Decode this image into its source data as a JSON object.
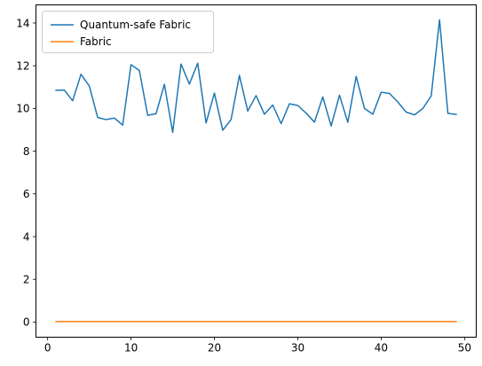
{
  "chart_data": {
    "type": "line",
    "title": "",
    "xlabel": "",
    "ylabel": "",
    "xlim": [
      -1.4,
      51.4
    ],
    "ylim": [
      -0.71,
      14.85
    ],
    "xticks": [
      0,
      10,
      20,
      30,
      40,
      50
    ],
    "yticks": [
      0,
      2,
      4,
      6,
      8,
      10,
      12,
      14
    ],
    "grid": false,
    "legend_position": "top-left",
    "x": [
      1,
      2,
      3,
      4,
      5,
      6,
      7,
      8,
      9,
      10,
      11,
      12,
      13,
      14,
      15,
      16,
      17,
      18,
      19,
      20,
      21,
      22,
      23,
      24,
      25,
      26,
      27,
      28,
      29,
      30,
      31,
      32,
      33,
      34,
      35,
      36,
      37,
      38,
      39,
      40,
      41,
      42,
      43,
      44,
      45,
      46,
      47,
      48,
      49
    ],
    "series": [
      {
        "name": "Quantum-safe Fabric",
        "color": "#1f77b4",
        "values": [
          10.85,
          10.86,
          10.36,
          11.6,
          11.05,
          9.58,
          9.48,
          9.55,
          9.22,
          12.05,
          11.78,
          9.68,
          9.75,
          11.13,
          8.88,
          12.08,
          11.14,
          12.12,
          9.32,
          10.72,
          8.98,
          9.48,
          11.55,
          9.88,
          10.6,
          9.73,
          10.16,
          9.29,
          10.22,
          10.14,
          9.78,
          9.36,
          10.54,
          9.18,
          10.62,
          9.35,
          11.5,
          10.0,
          9.73,
          10.76,
          10.7,
          10.3,
          9.83,
          9.7,
          10.0,
          10.59,
          14.15,
          9.77,
          9.72
        ]
      },
      {
        "name": "Fabric",
        "color": "#ff7f0e",
        "values": [
          0.02,
          0.02,
          0.02,
          0.02,
          0.02,
          0.02,
          0.02,
          0.02,
          0.02,
          0.02,
          0.02,
          0.02,
          0.02,
          0.02,
          0.02,
          0.02,
          0.02,
          0.02,
          0.02,
          0.02,
          0.02,
          0.02,
          0.02,
          0.02,
          0.02,
          0.02,
          0.02,
          0.02,
          0.02,
          0.02,
          0.02,
          0.02,
          0.02,
          0.02,
          0.02,
          0.02,
          0.02,
          0.02,
          0.02,
          0.02,
          0.02,
          0.02,
          0.02,
          0.02,
          0.02,
          0.02,
          0.02,
          0.02,
          0.02
        ]
      }
    ]
  }
}
